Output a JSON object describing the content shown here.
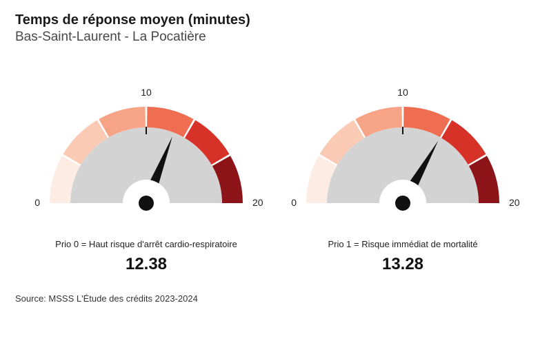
{
  "header": {
    "title": "Temps de réponse moyen (minutes)",
    "subtitle": "Bas-Saint-Laurent - La Pocatière"
  },
  "gauge_common": {
    "type": "gauge",
    "min": 0,
    "max": 20,
    "tick_mid": 10,
    "segments": 6,
    "segment_colors": [
      "#fdece4",
      "#fbcab4",
      "#f7a386",
      "#ef6e52",
      "#d63228",
      "#8d1419"
    ],
    "inner_fill": "#d3d3d3",
    "background": "#ffffff",
    "needle_color": "#111111",
    "axis_fontsize": 14,
    "outer_radius": 140,
    "inner_radius": 110,
    "hub_radius": 34
  },
  "gauges": [
    {
      "caption": "Prio 0 = Haut risque d'arrêt cardio-respiratoire",
      "value": 12.38,
      "value_text": "12.38"
    },
    {
      "caption": "Prio 1 = Risque immédiat de mortalité",
      "value": 13.28,
      "value_text": "13.28"
    }
  ],
  "footer": {
    "source": "Source: MSSS L'Étude des crédits 2023-2024"
  }
}
